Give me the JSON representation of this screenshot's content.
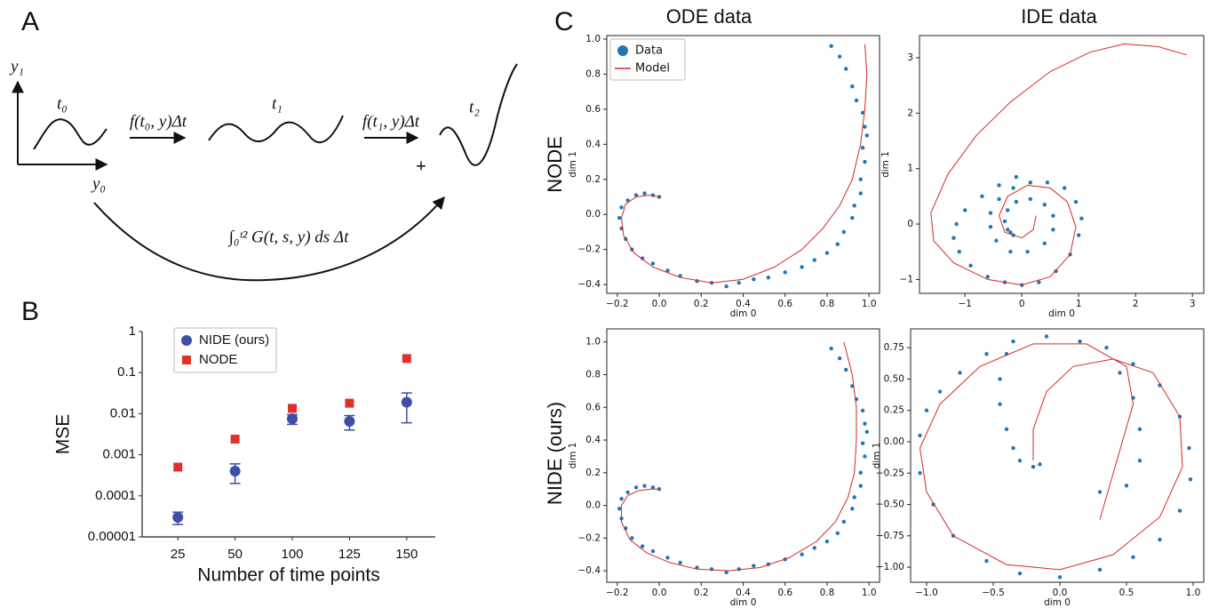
{
  "panel_labels": [
    "A",
    "B",
    "C"
  ],
  "diagram": {
    "y_axis": "y₁",
    "x_axis": "y₀",
    "t0": "t₀",
    "t1": "t₁",
    "t2": "t₂",
    "step0": "f(t₀, y)Δt",
    "step1": "f(t₁, y)Δt",
    "plus": "+",
    "integral": "∫₀ᵗ² G(t, s, y) ds Δt"
  },
  "column_titles": [
    "ODE data",
    "IDE data"
  ],
  "row_titles": [
    "NODE",
    "NIDE (ours)"
  ],
  "chart_data": [
    {
      "type": "scatter",
      "frame": false,
      "log_y": true,
      "xlabel": "Number of time points",
      "ylabel": "MSE",
      "categories": [
        "25",
        "50",
        "100",
        "125",
        "150"
      ],
      "ylim": [
        1e-05,
        1
      ],
      "yticks": [
        1e-05,
        0.0001,
        0.001,
        0.01,
        0.1,
        1
      ],
      "legend": "upper left",
      "series": [
        {
          "name": "NIDE (ours)",
          "color": "#3c4fa5",
          "marker": "circle",
          "values": [
            3e-05,
            0.0004,
            0.0075,
            0.0065,
            0.019
          ],
          "errors": [
            1e-05,
            0.0002,
            0.002,
            0.0025,
            0.013
          ]
        },
        {
          "name": "NODE",
          "color": "#e0302a",
          "marker": "square",
          "values": [
            0.0005,
            0.0024,
            0.0135,
            0.018,
            0.22
          ]
        }
      ]
    },
    {
      "type": "scatter",
      "frame": true,
      "xlabel": "dim 0",
      "ylabel": "dim 1",
      "legend": "upper left",
      "xlim": [
        -0.25,
        1.05
      ],
      "ylim": [
        -0.45,
        1.02
      ],
      "xticks": [
        {
          "value": -0.2,
          "label": "−0.2"
        },
        {
          "value": 0,
          "label": "0.0"
        },
        0.2,
        0.4,
        0.6,
        0.8,
        {
          "value": 1,
          "label": "1.0"
        }
      ],
      "yticks": [
        {
          "value": -0.4,
          "label": "−0.4"
        },
        {
          "value": -0.2,
          "label": "−0.2"
        },
        {
          "value": 0,
          "label": "0.0"
        },
        0.2,
        0.4,
        0.6,
        0.8,
        {
          "value": 1,
          "label": "1.0"
        }
      ],
      "series": [
        {
          "name": "Data",
          "color": "#1f77b4",
          "marker": "dot",
          "x": [
            0.82,
            0.86,
            0.89,
            0.92,
            0.94,
            0.97,
            0.98,
            0.99,
            0.97,
            0.98,
            0.96,
            0.96,
            0.93,
            0.92,
            0.88,
            0.85,
            0.8,
            0.74,
            0.68,
            0.6,
            0.52,
            0.45,
            0.38,
            0.32,
            0.25,
            0.18,
            0.1,
            0.04,
            -0.03,
            -0.08,
            -0.13,
            -0.16,
            -0.18,
            -0.19,
            -0.18,
            -0.15,
            -0.11,
            -0.07,
            -0.03,
            0
          ],
          "values": [
            0.96,
            0.9,
            0.83,
            0.73,
            0.65,
            0.58,
            0.5,
            0.45,
            0.38,
            0.3,
            0.2,
            0.12,
            0.05,
            -0.02,
            -0.1,
            -0.17,
            -0.22,
            -0.26,
            -0.3,
            -0.33,
            -0.36,
            -0.37,
            -0.39,
            -0.41,
            -0.39,
            -0.38,
            -0.35,
            -0.32,
            -0.28,
            -0.25,
            -0.2,
            -0.14,
            -0.08,
            -0.02,
            0.04,
            0.08,
            0.11,
            0.12,
            0.11,
            0.1
          ]
        },
        {
          "name": "Model",
          "color": "#d62728",
          "marker": "line",
          "x": [
            0.98,
            0.99,
            0.98,
            0.96,
            0.92,
            0.86,
            0.78,
            0.68,
            0.55,
            0.4,
            0.25,
            0.1,
            -0.03,
            -0.12,
            -0.17,
            -0.18,
            -0.16,
            -0.11,
            -0.05,
            0
          ],
          "values": [
            0.97,
            0.8,
            0.6,
            0.4,
            0.2,
            0.05,
            -0.08,
            -0.2,
            -0.3,
            -0.37,
            -0.39,
            -0.36,
            -0.3,
            -0.22,
            -0.12,
            -0.02,
            0.06,
            0.1,
            0.11,
            0.1
          ]
        }
      ]
    },
    {
      "type": "scatter",
      "frame": true,
      "xlabel": "dim 0",
      "ylabel": "dim 1",
      "xlim": [
        -1.8,
        3.2
      ],
      "ylim": [
        -1.25,
        3.4
      ],
      "xticks": [
        {
          "value": -1,
          "label": "−1"
        },
        0,
        1,
        2,
        3
      ],
      "yticks": [
        {
          "value": -1,
          "label": "−1"
        },
        0,
        1,
        2,
        3
      ],
      "series": [
        {
          "color": "#1f77b4",
          "marker": "dot",
          "x": [
            -0.1,
            -0.4,
            -0.7,
            -1.0,
            -1.15,
            -1.2,
            -1.1,
            -0.9,
            -0.6,
            -0.3,
            0,
            0.3,
            0.6,
            0.85,
            1,
            1.05,
            0.95,
            0.75,
            0.45,
            0.15,
            -0.15,
            -0.4,
            -0.55,
            -0.55,
            -0.45,
            -0.2,
            0.1,
            0.4,
            0.55,
            0.55,
            0.4,
            0.15,
            -0.1,
            -0.25,
            -0.3,
            -0.25,
            -0.15,
            -0.2
          ],
          "values": [
            0.85,
            0.7,
            0.5,
            0.25,
            0,
            -0.25,
            -0.5,
            -0.75,
            -0.95,
            -1.05,
            -1.1,
            -1.05,
            -0.85,
            -0.55,
            -0.2,
            0.1,
            0.4,
            0.65,
            0.75,
            0.75,
            0.65,
            0.45,
            0.2,
            -0.05,
            -0.3,
            -0.5,
            -0.5,
            -0.35,
            -0.1,
            0.15,
            0.35,
            0.45,
            0.4,
            0.25,
            0.05,
            -0.1,
            -0.2,
            -0.15
          ]
        },
        {
          "color": "#d62728",
          "marker": "line",
          "x": [
            2.9,
            2.4,
            1.8,
            1.2,
            0.5,
            -0.2,
            -0.8,
            -1.3,
            -1.6,
            -1.55,
            -1.2,
            -0.6,
            0,
            0.5,
            0.85,
            0.95,
            0.8,
            0.5,
            0.1,
            -0.25,
            -0.4,
            -0.3,
            0,
            0.2,
            0.25
          ],
          "values": [
            3.05,
            3.2,
            3.25,
            3.1,
            2.75,
            2.2,
            1.6,
            0.9,
            0.2,
            -0.3,
            -0.7,
            -1,
            -1.1,
            -0.95,
            -0.55,
            -0.05,
            0.4,
            0.65,
            0.7,
            0.5,
            0.15,
            -0.15,
            -0.25,
            -0.1,
            0.15
          ]
        }
      ]
    },
    {
      "type": "scatter",
      "frame": true,
      "xlabel": "dim 0",
      "ylabel": "dim 1",
      "xlim": [
        -0.25,
        1.05
      ],
      "ylim": [
        -0.47,
        1.08
      ],
      "xticks": [
        {
          "value": -0.2,
          "label": "−0.2"
        },
        {
          "value": 0,
          "label": "0.0"
        },
        0.2,
        0.4,
        0.6,
        0.8,
        {
          "value": 1,
          "label": "1.0"
        }
      ],
      "yticks": [
        {
          "value": -0.4,
          "label": "−0.4"
        },
        {
          "value": -0.2,
          "label": "−0.2"
        },
        {
          "value": 0,
          "label": "0.0"
        },
        0.2,
        0.4,
        0.6,
        0.8,
        {
          "value": 1,
          "label": "1.0"
        }
      ],
      "series": [
        {
          "color": "#1f77b4",
          "marker": "dot",
          "x": [
            0.82,
            0.86,
            0.89,
            0.92,
            0.94,
            0.97,
            0.98,
            0.99,
            0.97,
            0.98,
            0.96,
            0.96,
            0.93,
            0.92,
            0.88,
            0.85,
            0.8,
            0.74,
            0.68,
            0.6,
            0.52,
            0.45,
            0.38,
            0.32,
            0.25,
            0.18,
            0.1,
            0.04,
            -0.03,
            -0.08,
            -0.13,
            -0.16,
            -0.18,
            -0.19,
            -0.18,
            -0.15,
            -0.11,
            -0.07,
            -0.03,
            0
          ],
          "values": [
            0.96,
            0.9,
            0.83,
            0.73,
            0.65,
            0.58,
            0.5,
            0.45,
            0.38,
            0.3,
            0.2,
            0.12,
            0.05,
            -0.02,
            -0.1,
            -0.17,
            -0.22,
            -0.26,
            -0.3,
            -0.33,
            -0.36,
            -0.37,
            -0.39,
            -0.41,
            -0.39,
            -0.38,
            -0.35,
            -0.32,
            -0.28,
            -0.25,
            -0.2,
            -0.14,
            -0.08,
            -0.02,
            0.04,
            0.08,
            0.11,
            0.12,
            0.11,
            0.1
          ]
        },
        {
          "color": "#d62728",
          "marker": "line",
          "x": [
            0.88,
            0.92,
            0.94,
            0.94,
            0.93,
            0.9,
            0.84,
            0.75,
            0.62,
            0.48,
            0.33,
            0.18,
            0.05,
            -0.06,
            -0.14,
            -0.18,
            -0.18,
            -0.15,
            -0.1,
            -0.04,
            0
          ],
          "values": [
            1,
            0.8,
            0.6,
            0.4,
            0.2,
            0.05,
            -0.1,
            -0.22,
            -0.32,
            -0.38,
            -0.4,
            -0.39,
            -0.35,
            -0.29,
            -0.21,
            -0.1,
            0,
            0.06,
            0.09,
            0.1,
            0.1
          ]
        }
      ]
    },
    {
      "type": "scatter",
      "frame": true,
      "xlabel": "dim 0",
      "ylabel": "dim 1",
      "xlim": [
        -1.12,
        1.08
      ],
      "ylim": [
        -1.12,
        0.9
      ],
      "xticks": [
        {
          "value": -1,
          "label": "−1.0"
        },
        {
          "value": -0.5,
          "label": "−0.5"
        },
        {
          "value": 0,
          "label": "0.0"
        },
        0.5,
        {
          "value": 1,
          "label": "1.0"
        }
      ],
      "yticks": [
        {
          "value": -1,
          "label": "−1.00"
        },
        {
          "value": -0.75,
          "label": "−0.75"
        },
        {
          "value": -0.5,
          "label": "−0.50"
        },
        {
          "value": -0.25,
          "label": "−0.25"
        },
        {
          "value": 0,
          "label": "0.00"
        },
        0.25,
        {
          "value": 0.5,
          "label": "0.50"
        },
        0.75
      ],
      "series": [
        {
          "color": "#1f77b4",
          "marker": "dot",
          "x": [
            -1.05,
            -1,
            -0.9,
            -0.75,
            -0.55,
            -0.35,
            -0.1,
            0.15,
            0.35,
            0.55,
            0.75,
            0.9,
            0.97,
            0.98,
            0.9,
            0.75,
            0.55,
            0.3,
            0,
            -0.3,
            -0.55,
            -0.8,
            -0.95,
            -1.05,
            0.45,
            0.55,
            0.6,
            0.6,
            0.5,
            0.3,
            -0.4,
            -0.45,
            -0.45,
            -0.4,
            -0.35,
            -0.3,
            -0.2,
            -0.15
          ],
          "values": [
            0.05,
            0.25,
            0.4,
            0.55,
            0.7,
            0.8,
            0.84,
            0.8,
            0.75,
            0.62,
            0.45,
            0.2,
            -0.05,
            -0.3,
            -0.55,
            -0.78,
            -0.92,
            -1.02,
            -1.08,
            -1.05,
            -0.95,
            -0.75,
            -0.5,
            -0.25,
            0.55,
            0.35,
            0.1,
            -0.15,
            -0.35,
            -0.4,
            0.7,
            0.5,
            0.3,
            0.1,
            -0.05,
            -0.15,
            -0.2,
            -0.18
          ]
        },
        {
          "color": "#d62728",
          "marker": "line",
          "x": [
            0.3,
            0.55,
            0.5,
            0.2,
            -0.2,
            -0.6,
            -0.9,
            -1.05,
            -1,
            -0.8,
            -0.4,
            0,
            0.4,
            0.75,
            0.92,
            0.9,
            0.7,
            0.4,
            0.1,
            -0.1,
            -0.2,
            -0.2
          ],
          "values": [
            -0.62,
            0.3,
            0.6,
            0.78,
            0.78,
            0.6,
            0.3,
            -0.05,
            -0.4,
            -0.75,
            -0.98,
            -1.02,
            -0.9,
            -0.6,
            -0.2,
            0.2,
            0.55,
            0.66,
            0.6,
            0.4,
            0.1,
            -0.15
          ]
        }
      ]
    }
  ]
}
